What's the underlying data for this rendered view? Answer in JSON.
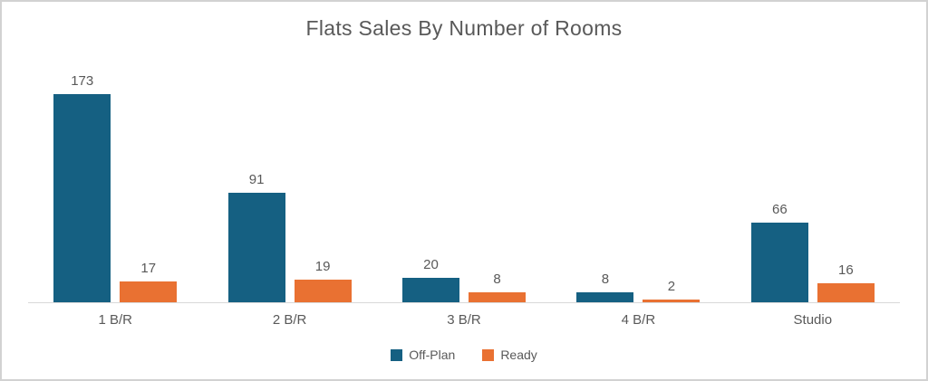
{
  "chart_data": {
    "type": "bar",
    "title": "Flats Sales By Number of Rooms",
    "categories": [
      "1 B/R",
      "2 B/R",
      "3 B/R",
      "4 B/R",
      "Studio"
    ],
    "series": [
      {
        "name": "Off-Plan",
        "color": "#156082",
        "values": [
          173,
          91,
          20,
          8,
          66
        ]
      },
      {
        "name": "Ready",
        "color": "#E97132",
        "values": [
          17,
          19,
          8,
          2,
          16
        ]
      }
    ],
    "xlabel": "",
    "ylabel": "",
    "ylim": [
      0,
      173
    ],
    "grid": false,
    "data_labels": true,
    "legend_position": "bottom"
  },
  "styles": {
    "off_plan_color": "#156082",
    "ready_color": "#E97132",
    "text_color": "#595959",
    "axis_line_color": "#D9D9D9",
    "frame_border_color": "#D2D2D2",
    "background": "#FFFFFF"
  }
}
